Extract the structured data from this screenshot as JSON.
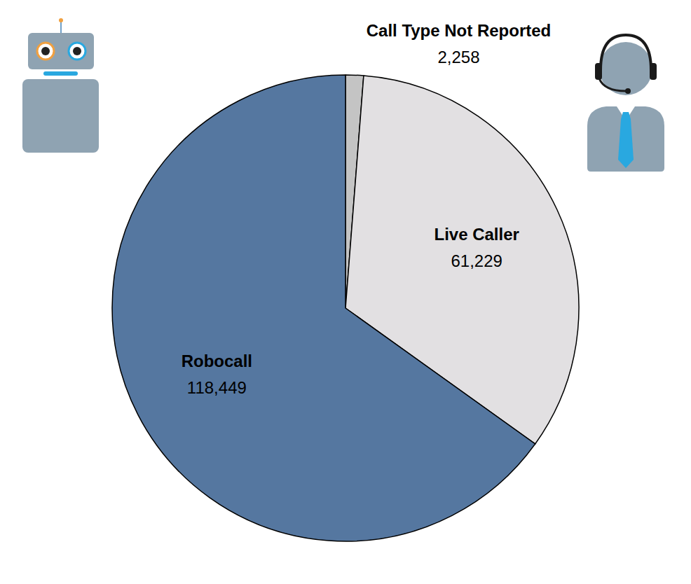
{
  "chart_data": {
    "type": "pie",
    "categories": [
      "Call Type Not Reported",
      "Live Caller",
      "Robocall"
    ],
    "values": [
      2258,
      61229,
      118449
    ],
    "value_labels": [
      "2,258",
      "61,229",
      "118,449"
    ],
    "colors": [
      "#c4c4c4",
      "#e2e0e2",
      "#5577a0"
    ],
    "data_labels": true
  }
}
